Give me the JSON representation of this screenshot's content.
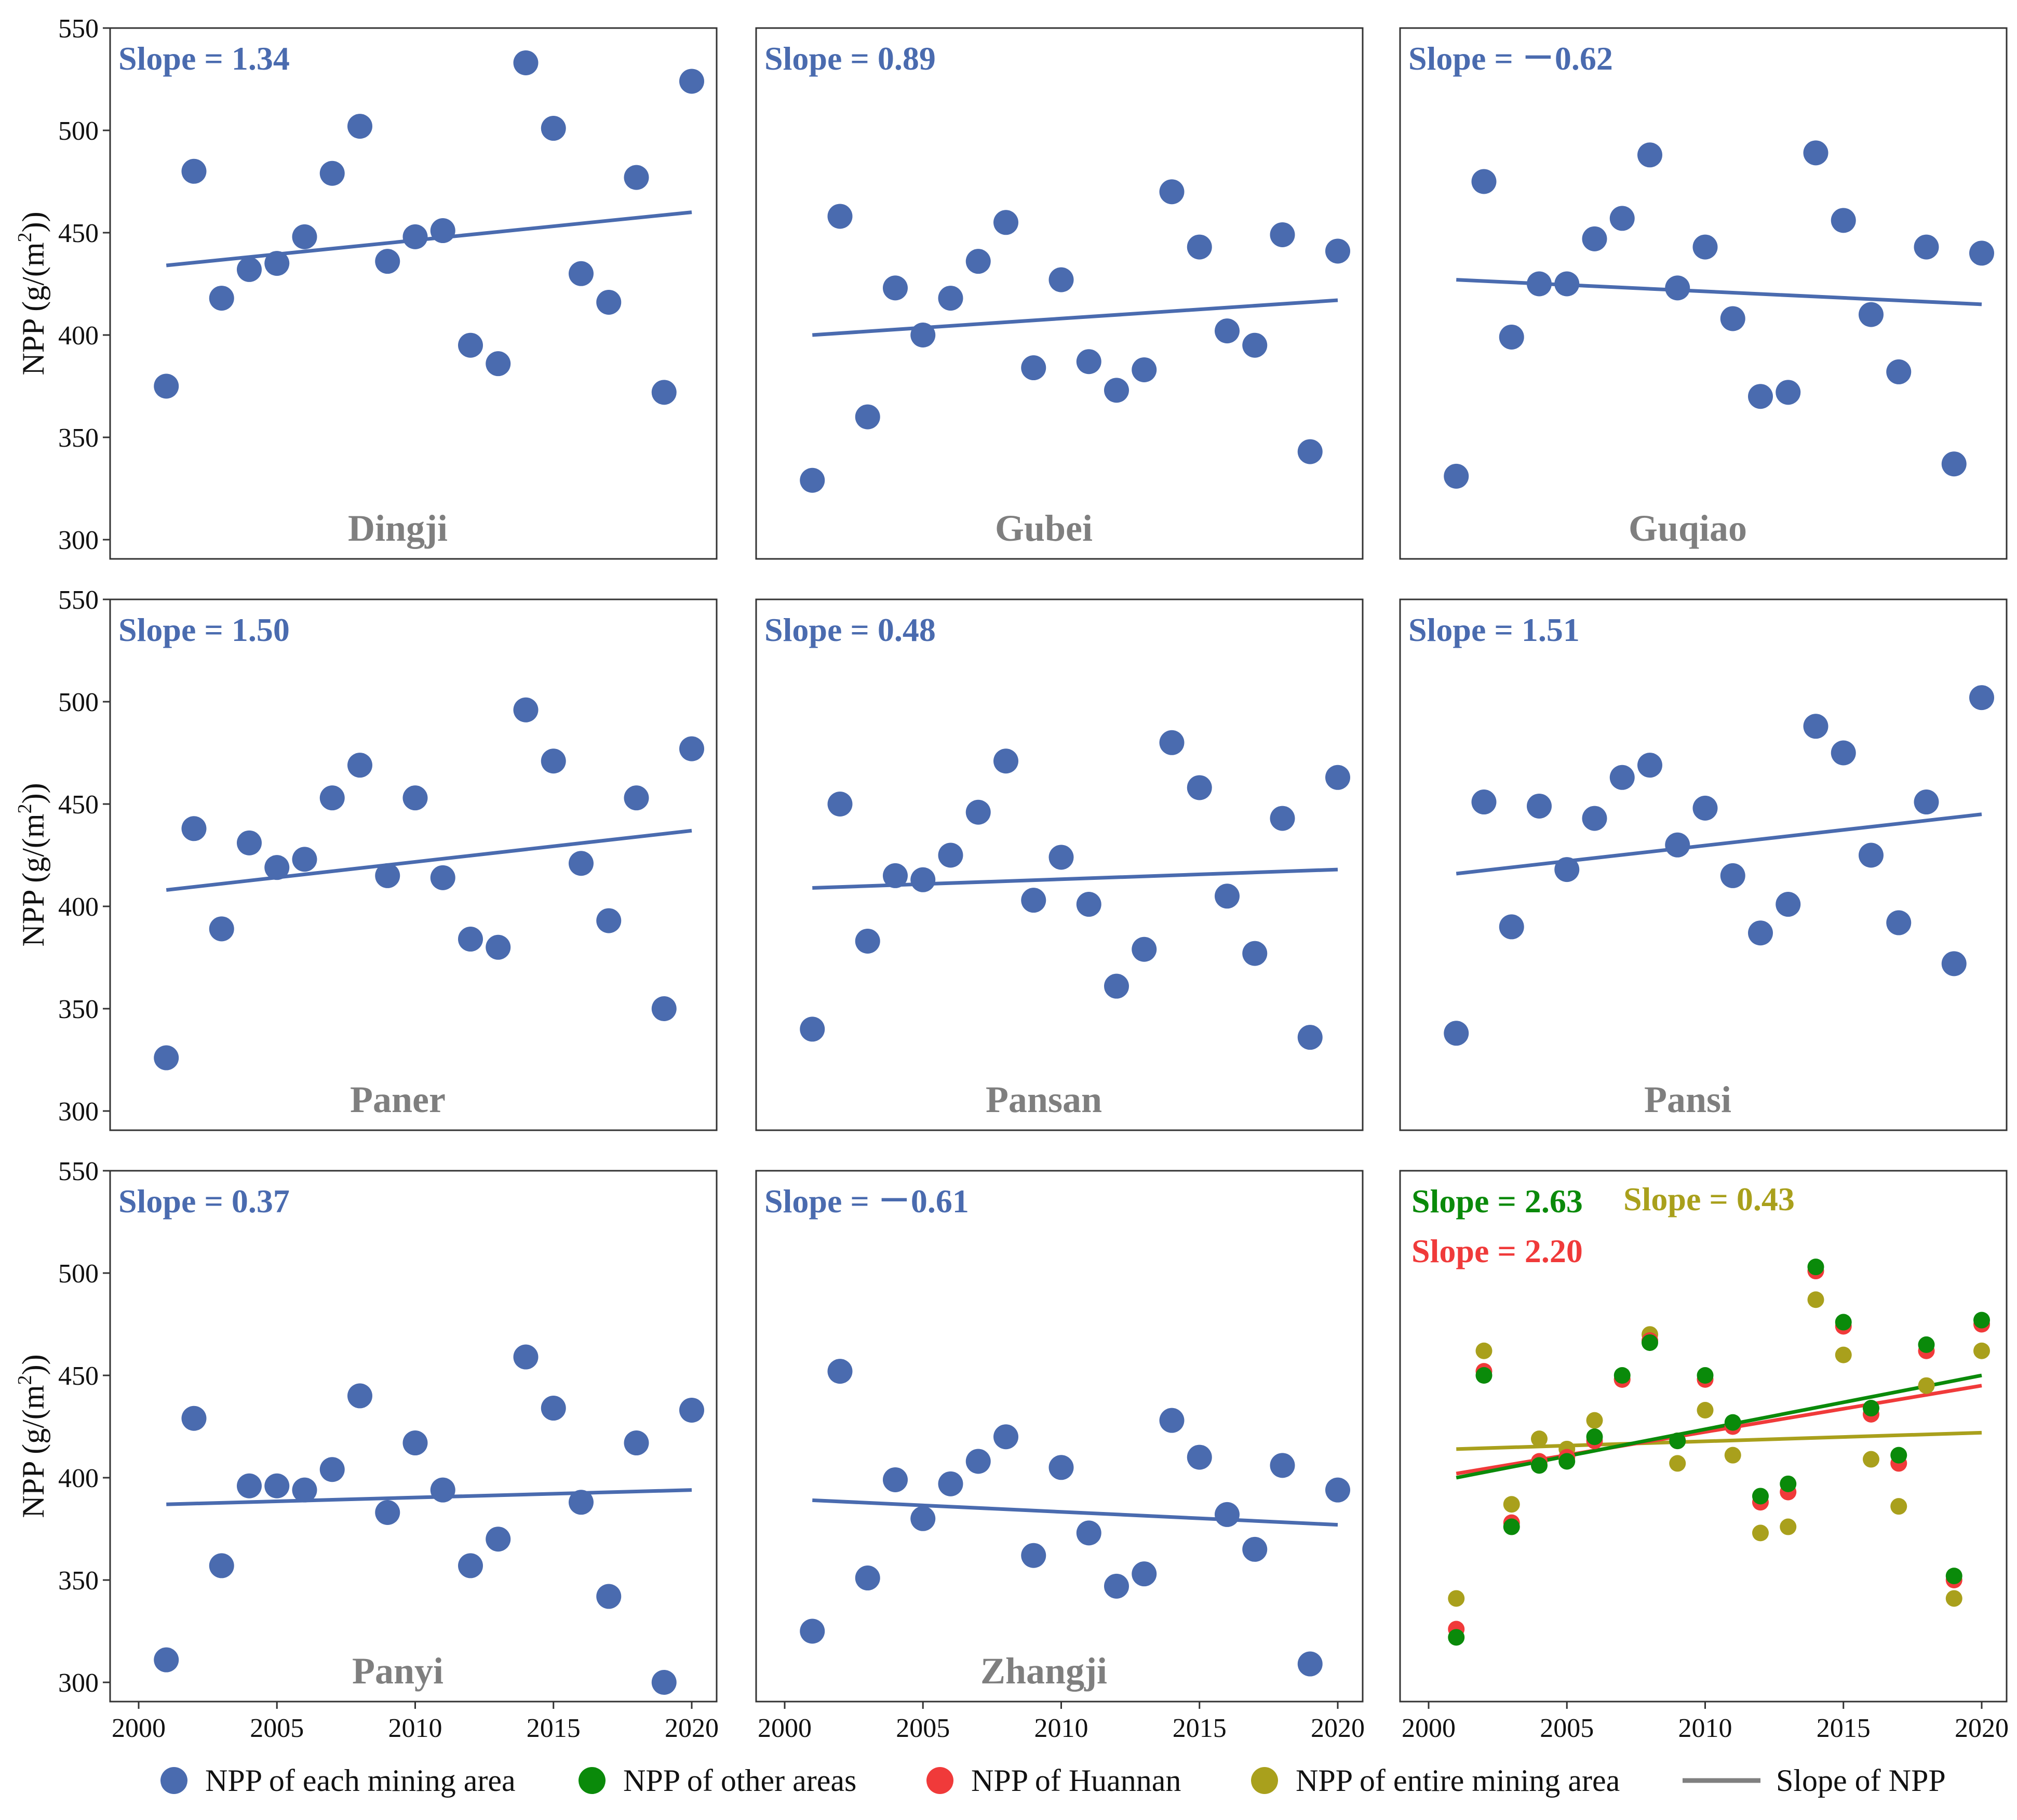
{
  "colors": {
    "blue": "#4a6baf",
    "green": "#0a8a0a",
    "red": "#f03a3a",
    "olive": "#a9a01c",
    "site_label": "#7f7f7f",
    "axis": "#333333",
    "legend_line": "#808080"
  },
  "axes": {
    "x_ticks": [
      "2000",
      "2005",
      "2010",
      "2015",
      "2020"
    ],
    "y_ticks": [
      "300",
      "350",
      "400",
      "450",
      "500",
      "550"
    ],
    "ylabel_main": "NPP  (g/(m",
    "ylabel_sup": "2",
    "ylabel_end": "))"
  },
  "legend": [
    {
      "label": "NPP of each mining area",
      "color": "#4a6baf",
      "kind": "dot"
    },
    {
      "label": "NPP of other areas",
      "color": "#0a8a0a",
      "kind": "dot"
    },
    {
      "label": "NPP of Huannan",
      "color": "#f03a3a",
      "kind": "dot"
    },
    {
      "label": "NPP of entire mining area",
      "color": "#a9a01c",
      "kind": "dot"
    },
    {
      "label": "Slope of NPP",
      "color": "#808080",
      "kind": "line"
    }
  ],
  "chart_data": [
    {
      "type": "scatter",
      "site": "Dingji",
      "slope_label": "Slope = 1.34",
      "xlim": [
        2000,
        2020
      ],
      "ylim": [
        300,
        550
      ],
      "x": [
        2001,
        2002,
        2003,
        2004,
        2005,
        2006,
        2007,
        2008,
        2009,
        2010,
        2011,
        2012,
        2013,
        2014,
        2015,
        2016,
        2017,
        2018,
        2019,
        2020
      ],
      "y": [
        375,
        480,
        418,
        432,
        435,
        448,
        479,
        502,
        436,
        448,
        451,
        395,
        386,
        533,
        501,
        430,
        416,
        477,
        372,
        524
      ],
      "trend": [
        434,
        460
      ]
    },
    {
      "type": "scatter",
      "site": "Gubei",
      "slope_label": "Slope = 0.89",
      "xlim": [
        2000,
        2020
      ],
      "ylim": [
        300,
        550
      ],
      "x": [
        2001,
        2002,
        2003,
        2004,
        2005,
        2006,
        2007,
        2008,
        2009,
        2010,
        2011,
        2012,
        2013,
        2014,
        2015,
        2016,
        2017,
        2018,
        2019,
        2020
      ],
      "y": [
        329,
        458,
        360,
        423,
        400,
        418,
        436,
        455,
        384,
        427,
        387,
        373,
        383,
        470,
        443,
        402,
        395,
        449,
        343,
        441
      ],
      "trend": [
        400,
        417
      ]
    },
    {
      "type": "scatter",
      "site": "Guqiao",
      "slope_label": "Slope = －0.62",
      "xlim": [
        2000,
        2020
      ],
      "ylim": [
        300,
        550
      ],
      "x": [
        2001,
        2002,
        2003,
        2004,
        2005,
        2006,
        2007,
        2008,
        2009,
        2010,
        2011,
        2012,
        2013,
        2014,
        2015,
        2016,
        2017,
        2018,
        2019,
        2020
      ],
      "y": [
        331,
        475,
        399,
        425,
        425,
        447,
        457,
        488,
        423,
        443,
        408,
        370,
        372,
        489,
        456,
        410,
        382,
        443,
        337,
        440
      ],
      "trend": [
        427,
        415
      ]
    },
    {
      "type": "scatter",
      "site": "Paner",
      "slope_label": "Slope = 1.50",
      "xlim": [
        2000,
        2020
      ],
      "ylim": [
        300,
        550
      ],
      "x": [
        2001,
        2002,
        2003,
        2004,
        2005,
        2006,
        2007,
        2008,
        2009,
        2010,
        2011,
        2012,
        2013,
        2014,
        2015,
        2016,
        2017,
        2018,
        2019,
        2020
      ],
      "y": [
        326,
        438,
        389,
        431,
        419,
        423,
        453,
        469,
        415,
        453,
        414,
        384,
        380,
        496,
        471,
        421,
        393,
        453,
        350,
        477
      ],
      "trend": [
        408,
        437
      ]
    },
    {
      "type": "scatter",
      "site": "Pansan",
      "slope_label": "Slope = 0.48",
      "xlim": [
        2000,
        2020
      ],
      "ylim": [
        300,
        550
      ],
      "x": [
        2001,
        2002,
        2003,
        2004,
        2005,
        2006,
        2007,
        2008,
        2009,
        2010,
        2011,
        2012,
        2013,
        2014,
        2015,
        2016,
        2017,
        2018,
        2019,
        2020
      ],
      "y": [
        340,
        450,
        383,
        415,
        413,
        425,
        446,
        471,
        403,
        424,
        401,
        361,
        379,
        480,
        458,
        405,
        377,
        443,
        336,
        463
      ],
      "trend": [
        409,
        418
      ]
    },
    {
      "type": "scatter",
      "site": "Pansi",
      "slope_label": "Slope = 1.51",
      "xlim": [
        2000,
        2020
      ],
      "ylim": [
        300,
        550
      ],
      "x": [
        2001,
        2002,
        2003,
        2004,
        2005,
        2006,
        2007,
        2008,
        2009,
        2010,
        2011,
        2012,
        2013,
        2014,
        2015,
        2016,
        2017,
        2018,
        2019,
        2020
      ],
      "y": [
        338,
        451,
        390,
        449,
        418,
        443,
        463,
        469,
        430,
        448,
        415,
        387,
        401,
        488,
        475,
        425,
        392,
        451,
        372,
        502
      ],
      "trend": [
        416,
        445
      ]
    },
    {
      "type": "scatter",
      "site": "Panyi",
      "slope_label": "Slope = 0.37",
      "xlim": [
        2000,
        2020
      ],
      "ylim": [
        300,
        550
      ],
      "x": [
        2001,
        2002,
        2003,
        2004,
        2005,
        2006,
        2007,
        2008,
        2009,
        2010,
        2011,
        2012,
        2013,
        2014,
        2015,
        2016,
        2017,
        2018,
        2019,
        2020
      ],
      "y": [
        311,
        429,
        357,
        396,
        396,
        394,
        404,
        440,
        383,
        417,
        394,
        357,
        370,
        459,
        434,
        388,
        342,
        417,
        300,
        433
      ],
      "trend": [
        387,
        394
      ]
    },
    {
      "type": "scatter",
      "site": "Zhangji",
      "slope_label": "Slope = －0.61",
      "xlim": [
        2000,
        2020
      ],
      "ylim": [
        300,
        550
      ],
      "x": [
        2001,
        2002,
        2003,
        2004,
        2005,
        2006,
        2007,
        2008,
        2009,
        2010,
        2011,
        2012,
        2013,
        2014,
        2015,
        2016,
        2017,
        2018,
        2019,
        2020
      ],
      "y": [
        325,
        452,
        351,
        399,
        380,
        397,
        408,
        420,
        362,
        405,
        373,
        347,
        353,
        428,
        410,
        382,
        365,
        406,
        309,
        394
      ],
      "trend": [
        389,
        377
      ]
    },
    {
      "type": "scatter",
      "site": "",
      "xlim": [
        2000,
        2020
      ],
      "ylim": [
        300,
        550
      ],
      "slope_labels": [
        {
          "text": "Slope = 2.63",
          "color": "#0a8a0a"
        },
        {
          "text": "Slope = 0.43",
          "color": "#a9a01c"
        },
        {
          "text": "Slope = 2.20",
          "color": "#f03a3a"
        }
      ],
      "x": [
        2001,
        2002,
        2003,
        2004,
        2005,
        2006,
        2007,
        2008,
        2009,
        2010,
        2011,
        2012,
        2013,
        2014,
        2015,
        2016,
        2017,
        2018,
        2019,
        2020
      ],
      "series": [
        {
          "color": "#a9a01c",
          "y": [
            341,
            462,
            387,
            419,
            414,
            428,
            448,
            470,
            407,
            433,
            411,
            373,
            376,
            487,
            460,
            409,
            386,
            445,
            341,
            462
          ],
          "trend": [
            414,
            422
          ]
        },
        {
          "color": "#f03a3a",
          "y": [
            326,
            452,
            378,
            408,
            410,
            418,
            448,
            467,
            418,
            448,
            425,
            388,
            393,
            501,
            474,
            431,
            407,
            462,
            350,
            475
          ],
          "trend": [
            402,
            445
          ]
        },
        {
          "color": "#0a8a0a",
          "y": [
            322,
            450,
            376,
            406,
            408,
            420,
            450,
            466,
            418,
            450,
            427,
            391,
            397,
            503,
            476,
            434,
            411,
            465,
            352,
            477
          ],
          "trend": [
            400,
            450
          ]
        }
      ]
    }
  ]
}
